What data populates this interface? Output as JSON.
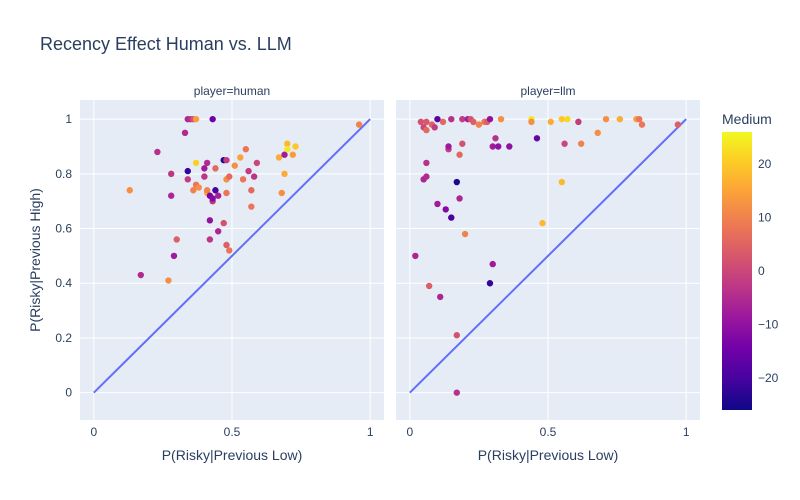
{
  "chart_data": {
    "type": "scatter",
    "title": "Recency Effect Human vs. LLM",
    "xlabel": "P(Risky|Previous Low)",
    "ylabel": "P(Risky|Previous High)",
    "xlim": [
      -0.05,
      1.05
    ],
    "ylim": [
      -0.1,
      1.07
    ],
    "x_ticks": [
      "0",
      "0.5",
      "1"
    ],
    "y_ticks": [
      "0",
      "0.2",
      "0.4",
      "0.6",
      "0.8",
      "1"
    ],
    "grid": true,
    "diagonal_line": [
      [
        0,
        0
      ],
      [
        1,
        1
      ]
    ],
    "colorbar": {
      "title": "Medium",
      "range": [
        -26,
        26
      ],
      "ticks": [
        "20",
        "10",
        "0",
        "−10",
        "−20"
      ],
      "tick_values": [
        20,
        10,
        0,
        -10,
        -20
      ],
      "colors": [
        "#0d0887",
        "#46039f",
        "#7201a8",
        "#9c179e",
        "#bd3786",
        "#d8576b",
        "#ed7953",
        "#fb9f3a",
        "#fdca26",
        "#f0f921"
      ]
    },
    "panels": [
      {
        "label": "player=human",
        "points": [
          {
            "x": 0.13,
            "y": 0.74,
            "c": 12
          },
          {
            "x": 0.17,
            "y": 0.43,
            "c": -5
          },
          {
            "x": 0.23,
            "y": 0.88,
            "c": -4
          },
          {
            "x": 0.27,
            "y": 0.41,
            "c": 12
          },
          {
            "x": 0.28,
            "y": 0.72,
            "c": -6
          },
          {
            "x": 0.28,
            "y": 0.8,
            "c": -3
          },
          {
            "x": 0.29,
            "y": 0.5,
            "c": -8
          },
          {
            "x": 0.3,
            "y": 0.56,
            "c": 4
          },
          {
            "x": 0.33,
            "y": 0.95,
            "c": -5
          },
          {
            "x": 0.34,
            "y": 0.81,
            "c": -22
          },
          {
            "x": 0.34,
            "y": 1.0,
            "c": -6
          },
          {
            "x": 0.34,
            "y": 0.78,
            "c": -2
          },
          {
            "x": 0.35,
            "y": 1.0,
            "c": -4
          },
          {
            "x": 0.36,
            "y": 1.0,
            "c": 2
          },
          {
            "x": 0.36,
            "y": 0.74,
            "c": 10
          },
          {
            "x": 0.37,
            "y": 1.0,
            "c": 14
          },
          {
            "x": 0.37,
            "y": 0.76,
            "c": 8
          },
          {
            "x": 0.37,
            "y": 0.84,
            "c": 21
          },
          {
            "x": 0.38,
            "y": 0.75,
            "c": 12
          },
          {
            "x": 0.4,
            "y": 0.79,
            "c": -3
          },
          {
            "x": 0.4,
            "y": 0.82,
            "c": -8
          },
          {
            "x": 0.41,
            "y": 0.84,
            "c": -5
          },
          {
            "x": 0.41,
            "y": 0.73,
            "c": 16
          },
          {
            "x": 0.41,
            "y": 0.74,
            "c": 10
          },
          {
            "x": 0.42,
            "y": 0.63,
            "c": -10
          },
          {
            "x": 0.42,
            "y": 0.56,
            "c": -3
          },
          {
            "x": 0.42,
            "y": 0.72,
            "c": -14
          },
          {
            "x": 0.43,
            "y": 0.7,
            "c": -3
          },
          {
            "x": 0.43,
            "y": 0.71,
            "c": -12
          },
          {
            "x": 0.43,
            "y": 1.0,
            "c": -15
          },
          {
            "x": 0.44,
            "y": 0.74,
            "c": -20
          },
          {
            "x": 0.44,
            "y": 0.82,
            "c": 6
          },
          {
            "x": 0.45,
            "y": 0.59,
            "c": -6
          },
          {
            "x": 0.45,
            "y": 0.72,
            "c": -7
          },
          {
            "x": 0.47,
            "y": 0.85,
            "c": -24
          },
          {
            "x": 0.47,
            "y": 0.62,
            "c": 2
          },
          {
            "x": 0.48,
            "y": 0.54,
            "c": 4
          },
          {
            "x": 0.48,
            "y": 0.78,
            "c": 12
          },
          {
            "x": 0.48,
            "y": 0.85,
            "c": -2
          },
          {
            "x": 0.48,
            "y": 0.73,
            "c": 8
          },
          {
            "x": 0.49,
            "y": 0.52,
            "c": 8
          },
          {
            "x": 0.49,
            "y": 0.79,
            "c": 6
          },
          {
            "x": 0.51,
            "y": 0.83,
            "c": 12
          },
          {
            "x": 0.53,
            "y": 0.86,
            "c": 15
          },
          {
            "x": 0.54,
            "y": 0.78,
            "c": 8
          },
          {
            "x": 0.55,
            "y": 0.89,
            "c": 8
          },
          {
            "x": 0.56,
            "y": 0.81,
            "c": -2
          },
          {
            "x": 0.57,
            "y": 0.74,
            "c": 6
          },
          {
            "x": 0.57,
            "y": 0.68,
            "c": 8
          },
          {
            "x": 0.58,
            "y": 0.79,
            "c": -3
          },
          {
            "x": 0.59,
            "y": 0.84,
            "c": 0
          },
          {
            "x": 0.67,
            "y": 0.86,
            "c": 16
          },
          {
            "x": 0.68,
            "y": 0.73,
            "c": 12
          },
          {
            "x": 0.69,
            "y": 0.87,
            "c": -8
          },
          {
            "x": 0.69,
            "y": 0.8,
            "c": 16
          },
          {
            "x": 0.7,
            "y": 0.91,
            "c": 18
          },
          {
            "x": 0.7,
            "y": 0.89,
            "c": 24
          },
          {
            "x": 0.72,
            "y": 0.87,
            "c": 14
          },
          {
            "x": 0.73,
            "y": 0.9,
            "c": 20
          },
          {
            "x": 0.96,
            "y": 0.98,
            "c": 10
          }
        ]
      },
      {
        "label": "player=llm",
        "points": [
          {
            "x": 0.02,
            "y": 0.5,
            "c": -6
          },
          {
            "x": 0.04,
            "y": 0.99,
            "c": 2
          },
          {
            "x": 0.05,
            "y": 0.78,
            "c": -6
          },
          {
            "x": 0.05,
            "y": 0.97,
            "c": 0
          },
          {
            "x": 0.06,
            "y": 0.84,
            "c": -4
          },
          {
            "x": 0.06,
            "y": 0.99,
            "c": 3
          },
          {
            "x": 0.06,
            "y": 0.96,
            "c": 6
          },
          {
            "x": 0.06,
            "y": 0.79,
            "c": -5
          },
          {
            "x": 0.07,
            "y": 0.39,
            "c": 4
          },
          {
            "x": 0.08,
            "y": 0.98,
            "c": 5
          },
          {
            "x": 0.09,
            "y": 0.97,
            "c": -2
          },
          {
            "x": 0.1,
            "y": 1.0,
            "c": -18
          },
          {
            "x": 0.1,
            "y": 0.69,
            "c": -8
          },
          {
            "x": 0.11,
            "y": 0.35,
            "c": -6
          },
          {
            "x": 0.12,
            "y": 0.99,
            "c": 6
          },
          {
            "x": 0.13,
            "y": 0.67,
            "c": -12
          },
          {
            "x": 0.14,
            "y": 0.89,
            "c": -2
          },
          {
            "x": 0.14,
            "y": 0.9,
            "c": -8
          },
          {
            "x": 0.15,
            "y": 0.64,
            "c": -20
          },
          {
            "x": 0.15,
            "y": 1.0,
            "c": -4
          },
          {
            "x": 0.17,
            "y": 0.77,
            "c": -24
          },
          {
            "x": 0.17,
            "y": 0.21,
            "c": 2
          },
          {
            "x": 0.17,
            "y": 0.0,
            "c": -4
          },
          {
            "x": 0.18,
            "y": 0.87,
            "c": 6
          },
          {
            "x": 0.18,
            "y": 0.71,
            "c": -6
          },
          {
            "x": 0.19,
            "y": 1.0,
            "c": -2
          },
          {
            "x": 0.19,
            "y": 0.91,
            "c": 2
          },
          {
            "x": 0.2,
            "y": 0.58,
            "c": 10
          },
          {
            "x": 0.21,
            "y": 1.0,
            "c": -8
          },
          {
            "x": 0.22,
            "y": 1.0,
            "c": 2
          },
          {
            "x": 0.23,
            "y": 0.99,
            "c": 4
          },
          {
            "x": 0.25,
            "y": 0.98,
            "c": 10
          },
          {
            "x": 0.27,
            "y": 0.99,
            "c": 8
          },
          {
            "x": 0.28,
            "y": 0.99,
            "c": 4
          },
          {
            "x": 0.29,
            "y": 0.4,
            "c": -22
          },
          {
            "x": 0.29,
            "y": 1.0,
            "c": -10
          },
          {
            "x": 0.3,
            "y": 0.47,
            "c": -8
          },
          {
            "x": 0.3,
            "y": 0.9,
            "c": -8
          },
          {
            "x": 0.31,
            "y": 0.93,
            "c": -4
          },
          {
            "x": 0.32,
            "y": 0.9,
            "c": -10
          },
          {
            "x": 0.33,
            "y": 1.0,
            "c": 12
          },
          {
            "x": 0.36,
            "y": 0.9,
            "c": -10
          },
          {
            "x": 0.44,
            "y": 1.0,
            "c": 24
          },
          {
            "x": 0.44,
            "y": 0.99,
            "c": 12
          },
          {
            "x": 0.46,
            "y": 0.93,
            "c": -16
          },
          {
            "x": 0.48,
            "y": 0.62,
            "c": 18
          },
          {
            "x": 0.51,
            "y": 0.99,
            "c": 16
          },
          {
            "x": 0.55,
            "y": 1.0,
            "c": 20
          },
          {
            "x": 0.55,
            "y": 0.77,
            "c": 18
          },
          {
            "x": 0.56,
            "y": 0.91,
            "c": 0
          },
          {
            "x": 0.57,
            "y": 1.0,
            "c": 22
          },
          {
            "x": 0.61,
            "y": 0.99,
            "c": 18
          },
          {
            "x": 0.61,
            "y": 0.99,
            "c": -2
          },
          {
            "x": 0.62,
            "y": 0.91,
            "c": 10
          },
          {
            "x": 0.68,
            "y": 0.95,
            "c": 12
          },
          {
            "x": 0.71,
            "y": 1.0,
            "c": 12
          },
          {
            "x": 0.76,
            "y": 1.0,
            "c": 16
          },
          {
            "x": 0.82,
            "y": 1.0,
            "c": 14
          },
          {
            "x": 0.83,
            "y": 1.0,
            "c": 8
          },
          {
            "x": 0.84,
            "y": 0.98,
            "c": 8
          },
          {
            "x": 0.97,
            "y": 0.98,
            "c": 4
          }
        ]
      }
    ]
  }
}
